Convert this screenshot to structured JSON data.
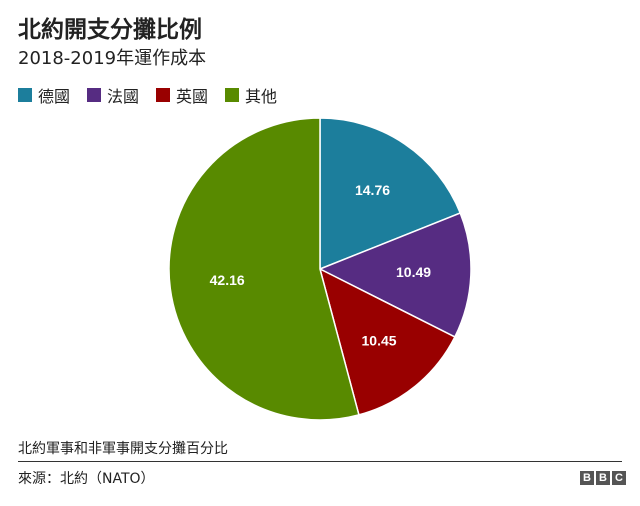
{
  "header": {
    "title": "北約開支分攤比例",
    "subtitle": "2018-2019年運作成本"
  },
  "chart_data": {
    "type": "pie",
    "title": "北約開支分攤比例",
    "subtitle": "2018-2019年運作成本",
    "categories": [
      "德國",
      "法國",
      "英國",
      "其他"
    ],
    "values": [
      14.76,
      10.49,
      10.45,
      42.16
    ],
    "value_labels": [
      "14.76",
      "10.49",
      "10.45",
      "42.16"
    ],
    "colors": [
      "#1c7e9c",
      "#562c82",
      "#990000",
      "#588a00"
    ],
    "legend_position": "top-left",
    "start_direction": "clockwise from 12 o'clock"
  },
  "footer": {
    "note": "北約軍事和非軍事開支分攤百分比",
    "source": "來源：北約（NATO）",
    "logo_letters": [
      "B",
      "B",
      "C"
    ]
  }
}
